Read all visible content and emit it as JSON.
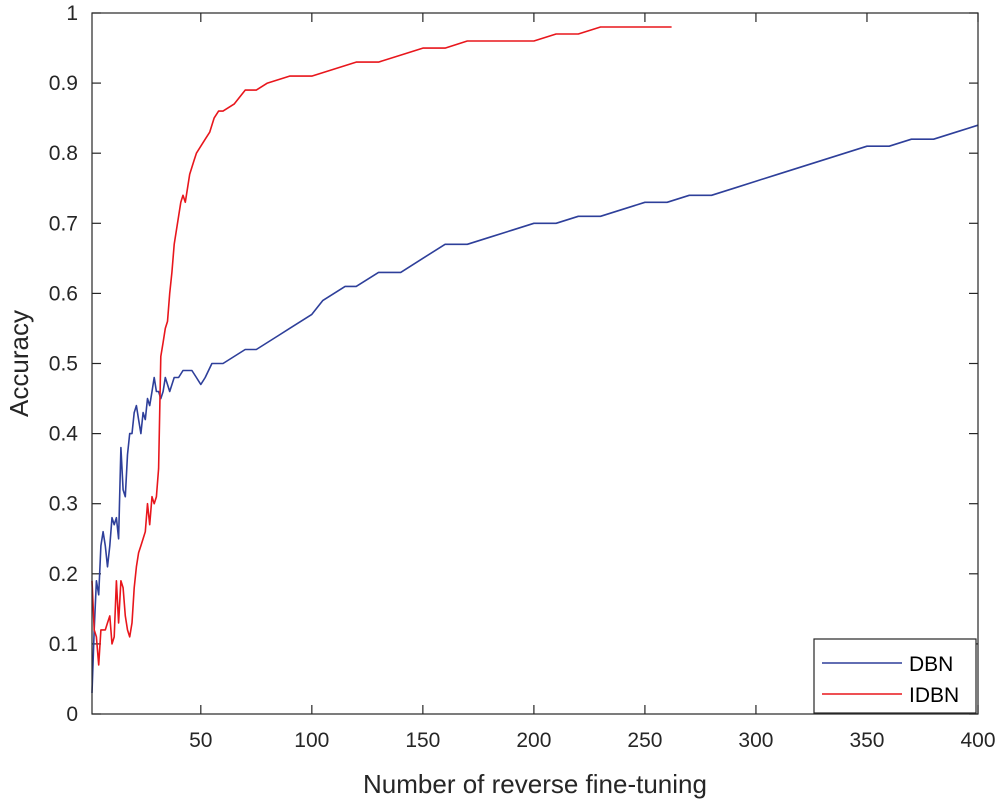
{
  "chart_data": {
    "type": "line",
    "title": "",
    "xlabel": "Number of reverse fine-tuning",
    "ylabel": "Accuracy",
    "xlim": [
      1,
      400
    ],
    "ylim": [
      0,
      1
    ],
    "xticks": [
      50,
      100,
      150,
      200,
      250,
      300,
      350,
      400
    ],
    "yticks": [
      0,
      0.1,
      0.2,
      0.3,
      0.4,
      0.5,
      0.6,
      0.7,
      0.8,
      0.9,
      1
    ],
    "ytick_labels": [
      "0",
      "0.1",
      "0.2",
      "0.3",
      "0.4",
      "0.5",
      "0.6",
      "0.7",
      "0.8",
      "0.9",
      "1"
    ],
    "grid": false,
    "legend_position": "bottom-right",
    "series": [
      {
        "name": "DBN",
        "color": "#2e3f9a",
        "points": [
          [
            1,
            0.03
          ],
          [
            2,
            0.12
          ],
          [
            3,
            0.19
          ],
          [
            4,
            0.17
          ],
          [
            5,
            0.24
          ],
          [
            6,
            0.26
          ],
          [
            7,
            0.24
          ],
          [
            8,
            0.21
          ],
          [
            9,
            0.24
          ],
          [
            10,
            0.28
          ],
          [
            11,
            0.27
          ],
          [
            12,
            0.28
          ],
          [
            13,
            0.25
          ],
          [
            14,
            0.38
          ],
          [
            15,
            0.32
          ],
          [
            16,
            0.31
          ],
          [
            17,
            0.37
          ],
          [
            18,
            0.4
          ],
          [
            19,
            0.4
          ],
          [
            20,
            0.43
          ],
          [
            21,
            0.44
          ],
          [
            22,
            0.42
          ],
          [
            23,
            0.4
          ],
          [
            24,
            0.43
          ],
          [
            25,
            0.42
          ],
          [
            26,
            0.45
          ],
          [
            27,
            0.44
          ],
          [
            28,
            0.46
          ],
          [
            29,
            0.48
          ],
          [
            30,
            0.46
          ],
          [
            31,
            0.46
          ],
          [
            32,
            0.45
          ],
          [
            33,
            0.46
          ],
          [
            34,
            0.48
          ],
          [
            35,
            0.47
          ],
          [
            36,
            0.46
          ],
          [
            38,
            0.48
          ],
          [
            40,
            0.48
          ],
          [
            42,
            0.49
          ],
          [
            44,
            0.49
          ],
          [
            46,
            0.49
          ],
          [
            48,
            0.48
          ],
          [
            50,
            0.47
          ],
          [
            52,
            0.48
          ],
          [
            55,
            0.5
          ],
          [
            60,
            0.5
          ],
          [
            65,
            0.51
          ],
          [
            70,
            0.52
          ],
          [
            75,
            0.52
          ],
          [
            80,
            0.53
          ],
          [
            85,
            0.54
          ],
          [
            90,
            0.55
          ],
          [
            95,
            0.56
          ],
          [
            100,
            0.57
          ],
          [
            105,
            0.59
          ],
          [
            110,
            0.6
          ],
          [
            115,
            0.61
          ],
          [
            120,
            0.61
          ],
          [
            130,
            0.63
          ],
          [
            140,
            0.63
          ],
          [
            150,
            0.65
          ],
          [
            160,
            0.67
          ],
          [
            170,
            0.67
          ],
          [
            180,
            0.68
          ],
          [
            190,
            0.69
          ],
          [
            200,
            0.7
          ],
          [
            210,
            0.7
          ],
          [
            220,
            0.71
          ],
          [
            230,
            0.71
          ],
          [
            240,
            0.72
          ],
          [
            250,
            0.73
          ],
          [
            260,
            0.73
          ],
          [
            270,
            0.74
          ],
          [
            280,
            0.74
          ],
          [
            290,
            0.75
          ],
          [
            300,
            0.76
          ],
          [
            310,
            0.77
          ],
          [
            320,
            0.78
          ],
          [
            330,
            0.79
          ],
          [
            340,
            0.8
          ],
          [
            350,
            0.81
          ],
          [
            360,
            0.81
          ],
          [
            370,
            0.82
          ],
          [
            380,
            0.82
          ],
          [
            390,
            0.83
          ],
          [
            400,
            0.84
          ]
        ]
      },
      {
        "name": "IDBN",
        "color": "#e8161c",
        "points": [
          [
            1,
            0.19
          ],
          [
            2,
            0.12
          ],
          [
            3,
            0.11
          ],
          [
            4,
            0.07
          ],
          [
            5,
            0.12
          ],
          [
            6,
            0.12
          ],
          [
            7,
            0.12
          ],
          [
            8,
            0.13
          ],
          [
            9,
            0.14
          ],
          [
            10,
            0.1
          ],
          [
            11,
            0.11
          ],
          [
            12,
            0.19
          ],
          [
            13,
            0.13
          ],
          [
            14,
            0.19
          ],
          [
            15,
            0.18
          ],
          [
            16,
            0.14
          ],
          [
            17,
            0.12
          ],
          [
            18,
            0.11
          ],
          [
            19,
            0.13
          ],
          [
            20,
            0.18
          ],
          [
            21,
            0.21
          ],
          [
            22,
            0.23
          ],
          [
            23,
            0.24
          ],
          [
            24,
            0.25
          ],
          [
            25,
            0.26
          ],
          [
            26,
            0.3
          ],
          [
            27,
            0.27
          ],
          [
            28,
            0.31
          ],
          [
            29,
            0.3
          ],
          [
            30,
            0.31
          ],
          [
            31,
            0.35
          ],
          [
            32,
            0.51
          ],
          [
            33,
            0.53
          ],
          [
            34,
            0.55
          ],
          [
            35,
            0.56
          ],
          [
            36,
            0.6
          ],
          [
            37,
            0.63
          ],
          [
            38,
            0.67
          ],
          [
            39,
            0.69
          ],
          [
            40,
            0.71
          ],
          [
            41,
            0.73
          ],
          [
            42,
            0.74
          ],
          [
            43,
            0.73
          ],
          [
            44,
            0.75
          ],
          [
            45,
            0.77
          ],
          [
            46,
            0.78
          ],
          [
            47,
            0.79
          ],
          [
            48,
            0.8
          ],
          [
            50,
            0.81
          ],
          [
            52,
            0.82
          ],
          [
            54,
            0.83
          ],
          [
            56,
            0.85
          ],
          [
            58,
            0.86
          ],
          [
            60,
            0.86
          ],
          [
            65,
            0.87
          ],
          [
            70,
            0.89
          ],
          [
            75,
            0.89
          ],
          [
            80,
            0.9
          ],
          [
            90,
            0.91
          ],
          [
            100,
            0.91
          ],
          [
            110,
            0.92
          ],
          [
            120,
            0.93
          ],
          [
            130,
            0.93
          ],
          [
            140,
            0.94
          ],
          [
            150,
            0.95
          ],
          [
            160,
            0.95
          ],
          [
            170,
            0.96
          ],
          [
            180,
            0.96
          ],
          [
            190,
            0.96
          ],
          [
            200,
            0.96
          ],
          [
            210,
            0.97
          ],
          [
            220,
            0.97
          ],
          [
            230,
            0.98
          ],
          [
            240,
            0.98
          ],
          [
            250,
            0.98
          ],
          [
            262,
            0.98
          ]
        ]
      }
    ]
  }
}
